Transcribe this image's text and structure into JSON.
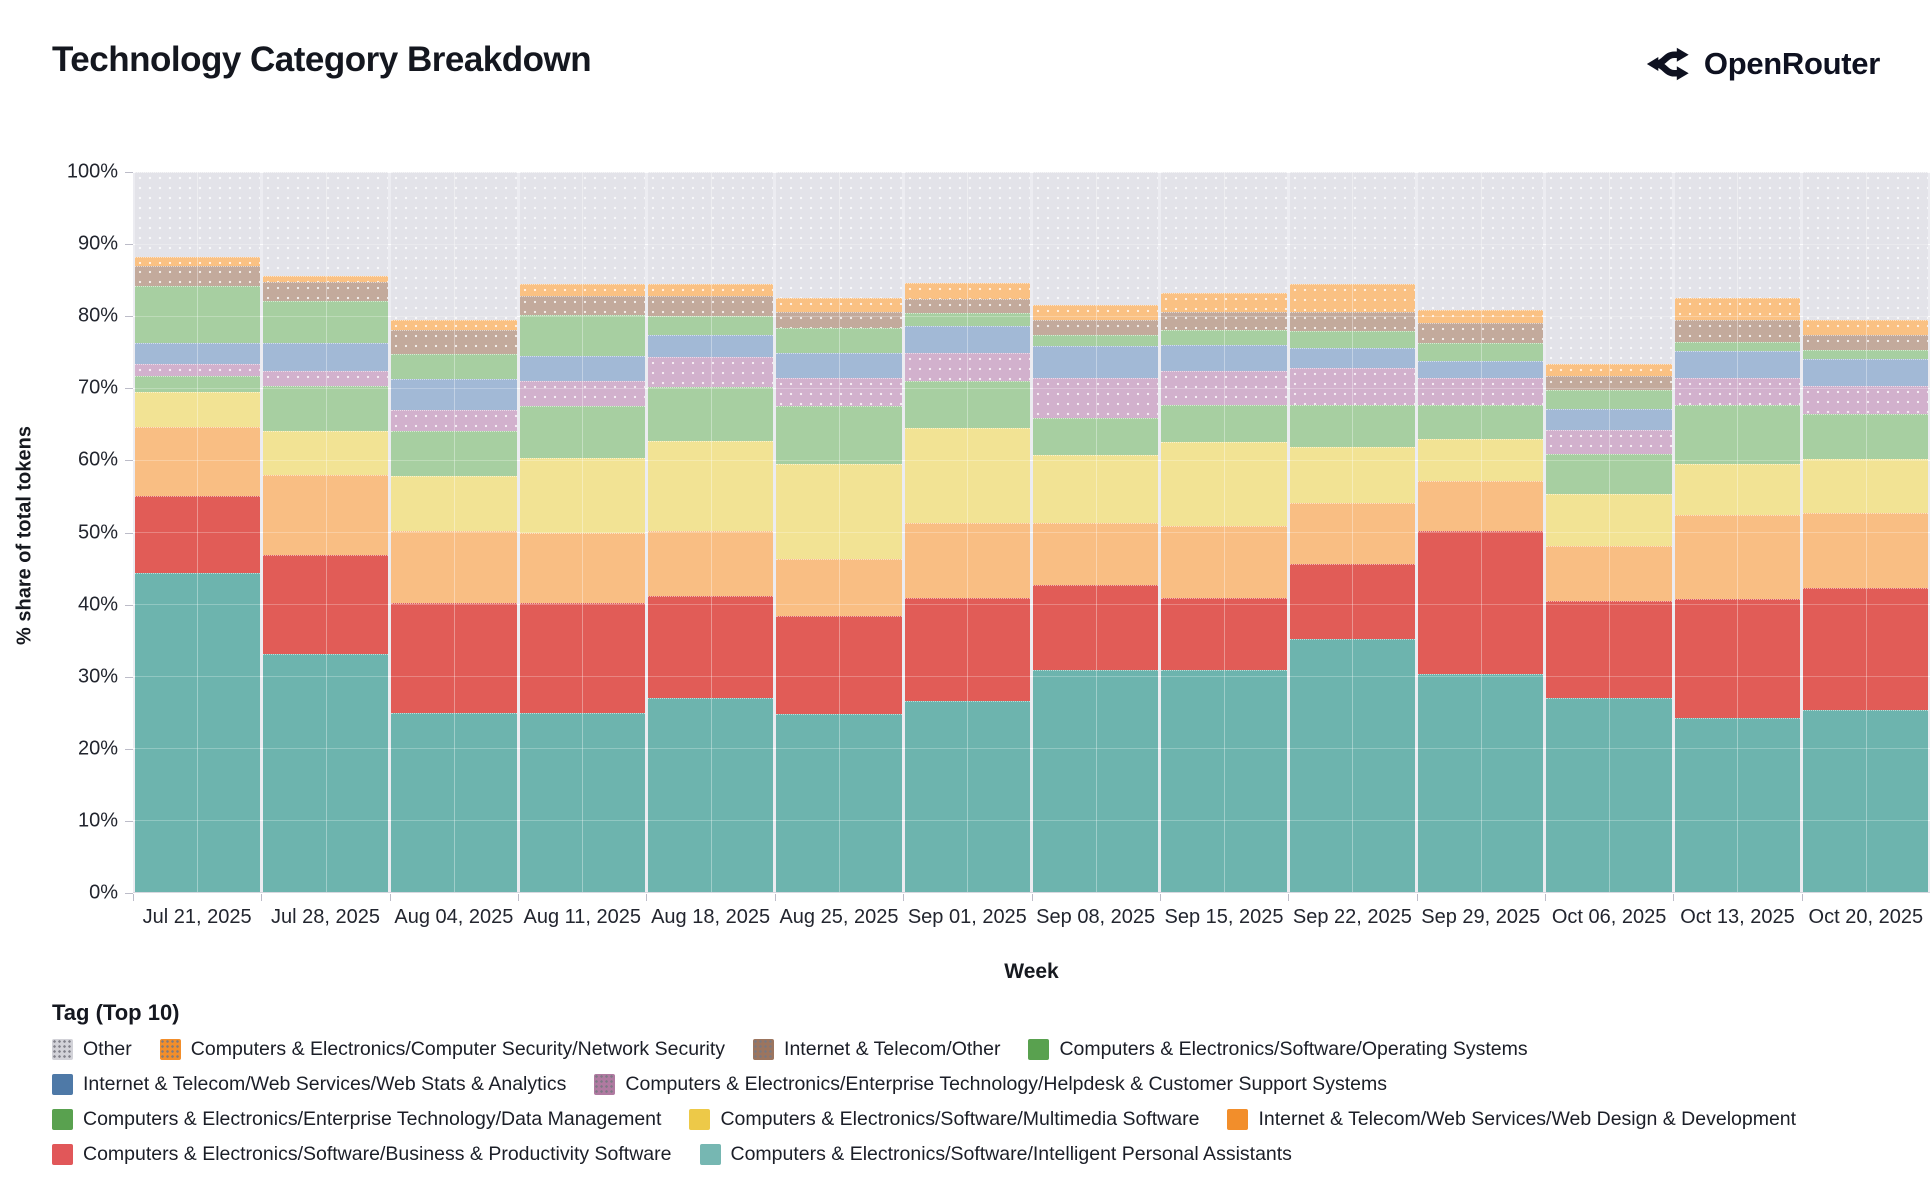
{
  "header": {
    "title": "Technology Category Breakdown",
    "brand": "OpenRouter"
  },
  "axes": {
    "y_title": "% share of total tokens",
    "x_title": "Week",
    "y_ticks": [
      "0%",
      "10%",
      "20%",
      "30%",
      "40%",
      "50%",
      "60%",
      "70%",
      "80%",
      "90%",
      "100%"
    ]
  },
  "legend": {
    "title": "Tag (Top 10)",
    "rows": [
      [
        "other",
        "netsec",
        "telecom_other",
        "os"
      ],
      [
        "webstats",
        "helpdesk"
      ],
      [
        "datamgmt",
        "multimedia",
        "webdesign"
      ],
      [
        "bizprod",
        "ipa"
      ]
    ]
  },
  "chart_data": {
    "type": "bar",
    "stacked": true,
    "title": "Technology Category Breakdown",
    "xlabel": "Week",
    "ylabel": "% share of total tokens",
    "ylim": [
      0,
      100
    ],
    "units": "percent of total tokens",
    "grid": true,
    "legend_position": "bottom",
    "categories": [
      "Jul 21, 2025",
      "Jul 28, 2025",
      "Aug 04, 2025",
      "Aug 11, 2025",
      "Aug 18, 2025",
      "Aug 25, 2025",
      "Sep 01, 2025",
      "Sep 08, 2025",
      "Sep 15, 2025",
      "Sep 22, 2025",
      "Sep 29, 2025",
      "Oct 06, 2025",
      "Oct 13, 2025",
      "Oct 20, 2025"
    ],
    "stack_order_note": "series listed bottom-to-top as stacked",
    "series": [
      {
        "key": "ipa",
        "label": "Computers & Electronics/Software/Intelligent Personal Assistants",
        "legend_color": "#76b7b2",
        "bar_color": "#6db4ae",
        "pattern": "none",
        "values": [
          44.3,
          33.0,
          24.9,
          24.9,
          27.0,
          24.7,
          26.5,
          30.9,
          30.8,
          35.2,
          30.3,
          27.0,
          24.2,
          25.3
        ]
      },
      {
        "key": "bizprod",
        "label": "Computers & Electronics/Software/Business & Productivity Software",
        "legend_color": "#e15759",
        "bar_color": "#e15c57",
        "pattern": "none",
        "values": [
          10.7,
          13.8,
          15.3,
          15.2,
          14.1,
          13.7,
          14.4,
          11.8,
          10.1,
          10.3,
          19.9,
          13.4,
          16.5,
          16.9
        ]
      },
      {
        "key": "webdesign",
        "label": "Internet & Telecom/Web Services/Web Design & Development",
        "legend_color": "#f28e2b",
        "bar_color": "#f9be83",
        "pattern": "none",
        "values": [
          9.6,
          11.1,
          10.0,
          9.8,
          9.1,
          7.9,
          10.4,
          8.6,
          10.0,
          8.5,
          6.9,
          7.7,
          11.7,
          10.5
        ]
      },
      {
        "key": "multimedia",
        "label": "Computers & Electronics/Software/Multimedia Software",
        "legend_color": "#edc948",
        "bar_color": "#f2e394",
        "pattern": "none",
        "values": [
          4.9,
          6.1,
          7.6,
          10.4,
          12.5,
          13.1,
          13.1,
          9.4,
          11.6,
          7.8,
          5.8,
          7.2,
          7.0,
          7.5
        ]
      },
      {
        "key": "datamgmt",
        "label": "Computers & Electronics/Enterprise Technology/Data Management",
        "legend_color": "#59a14f",
        "bar_color": "#a7cfa1",
        "pattern": "none",
        "values": [
          2.1,
          6.3,
          6.2,
          7.2,
          7.5,
          8.1,
          6.6,
          5.2,
          5.1,
          5.9,
          4.8,
          5.6,
          8.3,
          6.2
        ]
      },
      {
        "key": "helpdesk",
        "label": "Computers & Electronics/Enterprise Technology/Helpdesk & Customer Support Systems",
        "legend_color": "#b07aa1",
        "bar_color": "#d2b1cd",
        "pattern": "dots",
        "values": [
          1.7,
          2.0,
          2.9,
          3.5,
          4.1,
          3.9,
          3.9,
          5.5,
          4.7,
          5.1,
          3.7,
          3.3,
          3.7,
          3.9
        ]
      },
      {
        "key": "webstats",
        "label": "Internet & Telecom/Web Services/Web Stats & Analytics",
        "legend_color": "#4e79a7",
        "bar_color": "#a2b9d6",
        "pattern": "none",
        "values": [
          2.9,
          3.9,
          4.3,
          3.5,
          3.0,
          3.5,
          3.7,
          4.4,
          3.7,
          2.8,
          2.4,
          2.9,
          3.7,
          3.7
        ]
      },
      {
        "key": "os",
        "label": "Computers & Electronics/Software/Operating Systems",
        "legend_color": "#59a14f",
        "bar_color": "#a7cfa1",
        "pattern": "none",
        "values": [
          7.9,
          5.9,
          3.5,
          5.7,
          2.7,
          3.5,
          1.8,
          1.5,
          2.1,
          2.3,
          2.4,
          2.6,
          1.3,
          1.3
        ]
      },
      {
        "key": "telecom_other",
        "label": "Internet & Telecom/Other",
        "legend_color": "#9c755f",
        "bar_color": "#c3aa9c",
        "pattern": "dots",
        "values": [
          2.8,
          2.6,
          3.4,
          2.6,
          2.8,
          2.1,
          2.0,
          2.2,
          2.4,
          2.6,
          2.8,
          1.9,
          3.1,
          2.0
        ]
      },
      {
        "key": "netsec",
        "label": "Computers & Electronics/Computer Security/Network Security",
        "legend_color": "#f28e2b",
        "bar_color": "#fac183",
        "pattern": "dots",
        "values": [
          1.3,
          0.9,
          1.4,
          1.7,
          1.7,
          2.0,
          2.2,
          2.0,
          2.7,
          4.0,
          1.8,
          1.7,
          3.0,
          2.2
        ]
      },
      {
        "key": "other",
        "label": "Other",
        "legend_color": "#d2d2d8",
        "bar_color": "#e3e3e9",
        "pattern": "dots",
        "values": [
          11.8,
          14.4,
          20.5,
          15.5,
          15.5,
          17.5,
          15.4,
          18.5,
          16.8,
          15.5,
          19.2,
          26.7,
          17.5,
          20.5
        ]
      }
    ]
  }
}
